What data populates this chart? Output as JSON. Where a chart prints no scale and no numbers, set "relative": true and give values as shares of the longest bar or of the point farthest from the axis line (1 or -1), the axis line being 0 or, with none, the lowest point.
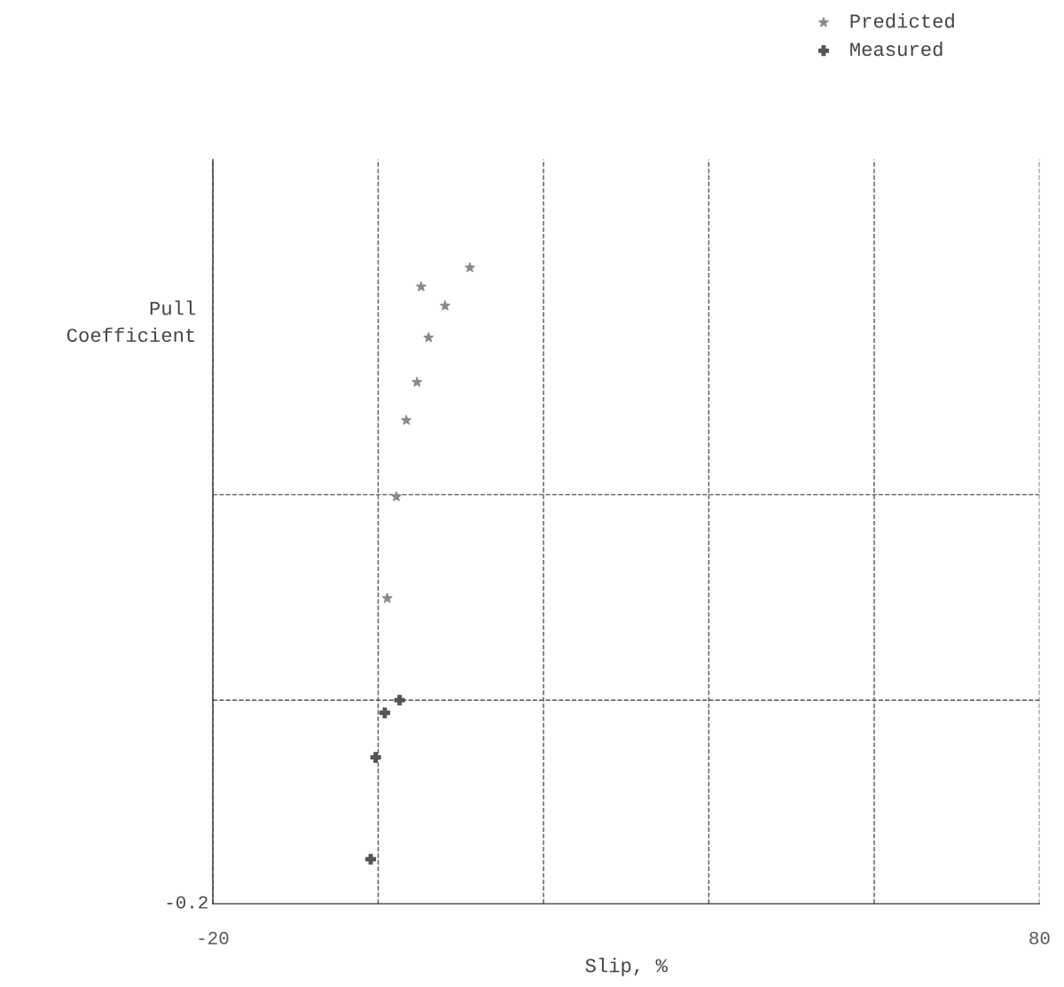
{
  "chart_data": {
    "type": "scatter",
    "relative": true,
    "xlabel": "Slip, %",
    "ylabel": "Pull\nCoefficient",
    "xlim": [
      -20,
      80
    ],
    "xticks": [
      -20,
      {
        "value": 0,
        "label": null
      },
      {
        "value": 20,
        "label": null
      },
      {
        "value": 40,
        "label": null
      },
      {
        "value": 60,
        "label": null
      },
      80
    ],
    "grid": "x",
    "legend": "top right",
    "annotations": [
      "-0.2"
    ],
    "ref_lines": [
      {
        "axis": "y",
        "value": 0.32,
        "label": null,
        "line_style": "dashed",
        "color": "#555555"
      },
      {
        "axis": "y",
        "value": 0.643,
        "label": null,
        "line_style": "dashed",
        "color": "#555555"
      }
    ],
    "series": [
      {
        "name": "Predicted",
        "color": "#8a8a8a",
        "marker": "star",
        "x": [
          1.1,
          2.2,
          3.4,
          4.7,
          5.2,
          6.1,
          8.1,
          11.1
        ],
        "values": [
          0.48,
          0.64,
          0.76,
          0.82,
          0.97,
          0.89,
          0.94,
          1.0
        ]
      },
      {
        "name": "Measured",
        "color": "#555555",
        "marker": "cross",
        "x": [
          -0.9,
          -0.3,
          0.8,
          2.6
        ],
        "values": [
          0.07,
          0.23,
          0.3,
          0.32
        ]
      }
    ]
  }
}
